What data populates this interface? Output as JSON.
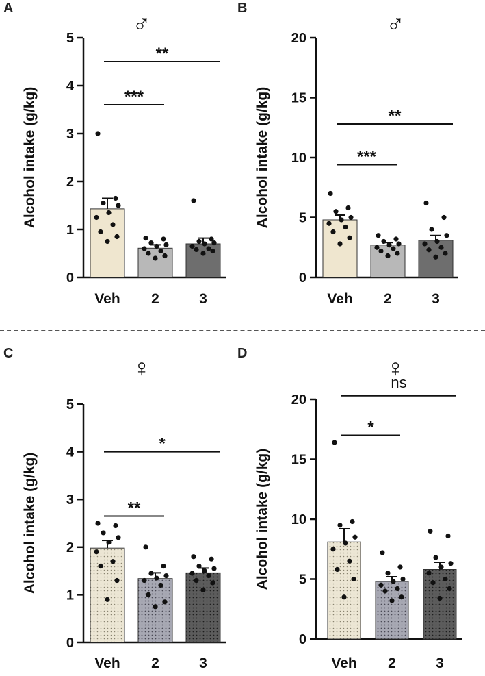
{
  "figure": {
    "divider_style": "dashed",
    "colors": {
      "veh_fill": "#efe6cf",
      "dose2_fill": "#b8b8b8",
      "dose3_fill": "#6e6e6e",
      "female_veh_fill": "#ece6d4",
      "female_dose2_fill": "#a7a8b3",
      "female_dose3_fill": "#5c5c5c",
      "axis": "#111111",
      "point": "#111111"
    }
  },
  "chart_data": [
    {
      "panel": "A",
      "type": "bar",
      "sex_symbol": "♂",
      "ylabel": "Alcohol intake (g/kg)",
      "ylim": [
        0,
        5
      ],
      "yticks": [
        "0",
        "1",
        "2",
        "3",
        "4",
        "5"
      ],
      "categories": [
        "Veh",
        "2",
        "3"
      ],
      "values": [
        1.43,
        0.61,
        0.7
      ],
      "errors": [
        0.22,
        0.07,
        0.12
      ],
      "points": [
        [
          3.0,
          1.65,
          1.55,
          1.5,
          1.35,
          1.25,
          1.1,
          0.95,
          0.85,
          0.75
        ],
        [
          0.82,
          0.8,
          0.72,
          0.68,
          0.65,
          0.6,
          0.55,
          0.5,
          0.45,
          0.4
        ],
        [
          1.6,
          0.8,
          0.75,
          0.72,
          0.7,
          0.65,
          0.6,
          0.58,
          0.55,
          0.5
        ]
      ],
      "significance": [
        {
          "from": 0,
          "to": 2,
          "y": 4.5,
          "label": "**"
        },
        {
          "from": 0,
          "to": 1,
          "y": 3.6,
          "label": "***"
        }
      ]
    },
    {
      "panel": "B",
      "type": "bar",
      "sex_symbol": "♂",
      "ylabel": "Alcohol intake (g/kg)",
      "ylim": [
        0,
        20
      ],
      "yticks": [
        "0",
        "5",
        "10",
        "15",
        "20"
      ],
      "categories": [
        "Veh",
        "2",
        "3"
      ],
      "values": [
        4.8,
        2.7,
        3.1
      ],
      "errors": [
        0.4,
        0.2,
        0.4
      ],
      "points": [
        [
          7.0,
          5.8,
          5.5,
          5.0,
          4.8,
          4.5,
          4.2,
          3.8,
          3.3,
          2.8
        ],
        [
          3.5,
          3.2,
          3.0,
          2.8,
          2.7,
          2.5,
          2.4,
          2.2,
          2.0,
          1.8
        ],
        [
          6.2,
          5.0,
          4.0,
          3.5,
          3.0,
          2.8,
          2.5,
          2.3,
          2.0,
          1.7
        ]
      ],
      "significance": [
        {
          "from": 0,
          "to": 2,
          "y": 12.8,
          "label": "**"
        },
        {
          "from": 0,
          "to": 1,
          "y": 9.4,
          "label": "***"
        }
      ]
    },
    {
      "panel": "C",
      "type": "bar",
      "sex_symbol": "♀",
      "ylabel": "Alcohol intake (g/kg)",
      "ylim": [
        0,
        5
      ],
      "yticks": [
        "0",
        "1",
        "2",
        "3",
        "4",
        "5"
      ],
      "categories": [
        "Veh",
        "2",
        "3"
      ],
      "values": [
        1.98,
        1.34,
        1.46
      ],
      "errors": [
        0.16,
        0.12,
        0.1
      ],
      "points": [
        [
          2.5,
          2.45,
          2.3,
          2.2,
          2.1,
          1.9,
          1.7,
          1.6,
          1.3,
          0.9
        ],
        [
          2.0,
          1.6,
          1.45,
          1.4,
          1.35,
          1.3,
          1.2,
          1.0,
          0.85,
          0.75
        ],
        [
          1.8,
          1.75,
          1.6,
          1.55,
          1.5,
          1.45,
          1.4,
          1.3,
          1.25,
          1.1
        ]
      ],
      "significance": [
        {
          "from": 0,
          "to": 2,
          "y": 4.0,
          "label": "*"
        },
        {
          "from": 0,
          "to": 1,
          "y": 2.65,
          "label": "**"
        }
      ]
    },
    {
      "panel": "D",
      "type": "bar",
      "sex_symbol": "♀",
      "ylabel": "Alcohol intake (g/kg)",
      "ylim": [
        0,
        20
      ],
      "yticks": [
        "0",
        "5",
        "10",
        "15",
        "20"
      ],
      "categories": [
        "Veh",
        "2",
        "3"
      ],
      "values": [
        8.1,
        4.8,
        5.8
      ],
      "errors": [
        1.1,
        0.4,
        0.6
      ],
      "points": [
        [
          16.4,
          9.8,
          9.5,
          8.5,
          8.0,
          7.5,
          6.5,
          5.8,
          5.0,
          3.5
        ],
        [
          7.2,
          6.0,
          5.5,
          5.0,
          4.8,
          4.5,
          4.2,
          4.0,
          3.5,
          3.2
        ],
        [
          9.0,
          8.6,
          6.8,
          6.3,
          6.0,
          5.5,
          5.0,
          4.7,
          4.2,
          3.4
        ]
      ],
      "significance": [
        {
          "from": 0,
          "to": 2,
          "y": 20.3,
          "label": "ns"
        },
        {
          "from": 0,
          "to": 1,
          "y": 17.0,
          "label": "*"
        }
      ]
    }
  ]
}
